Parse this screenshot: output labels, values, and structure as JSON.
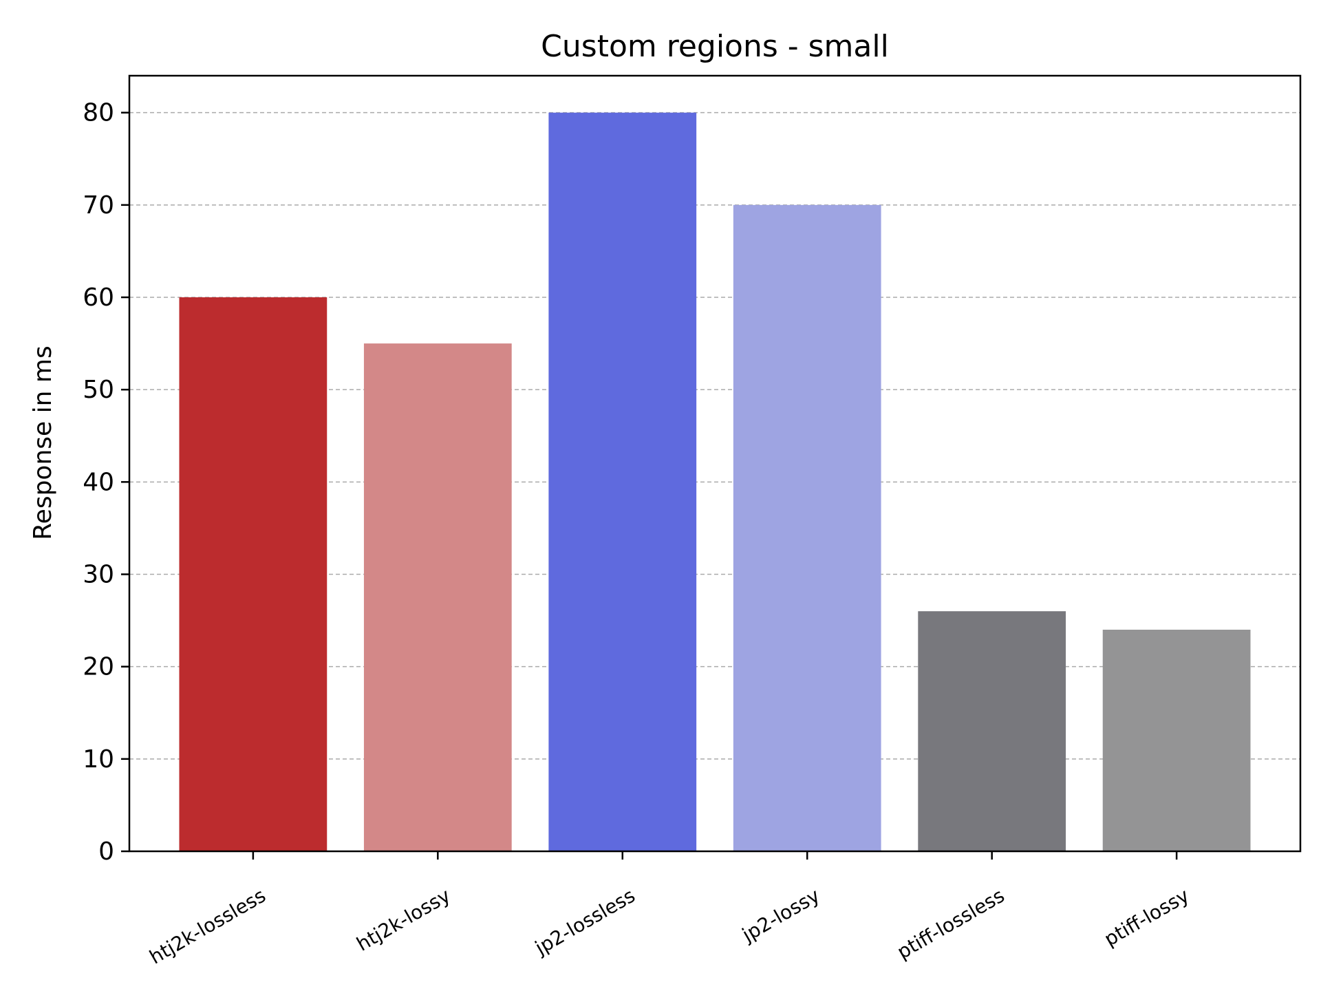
{
  "chart_data": {
    "type": "bar",
    "title": "Custom regions - small",
    "xlabel": "",
    "ylabel": "Response in ms",
    "categories": [
      "htj2k-lossless",
      "htj2k-lossy",
      "jp2-lossless",
      "jp2-lossy",
      "ptiff-lossless",
      "ptiff-lossy"
    ],
    "values": [
      60,
      55,
      80,
      70,
      26,
      24
    ],
    "colors": [
      "#bc2c2e",
      "#d38888",
      "#5f6ade",
      "#9ea4e2",
      "#78787d",
      "#949495"
    ],
    "ylim": [
      0,
      84
    ],
    "yticks": [
      0,
      10,
      20,
      30,
      40,
      50,
      60,
      70,
      80
    ],
    "grid": "y-dashed",
    "grid_color": "#aaaaaa"
  }
}
